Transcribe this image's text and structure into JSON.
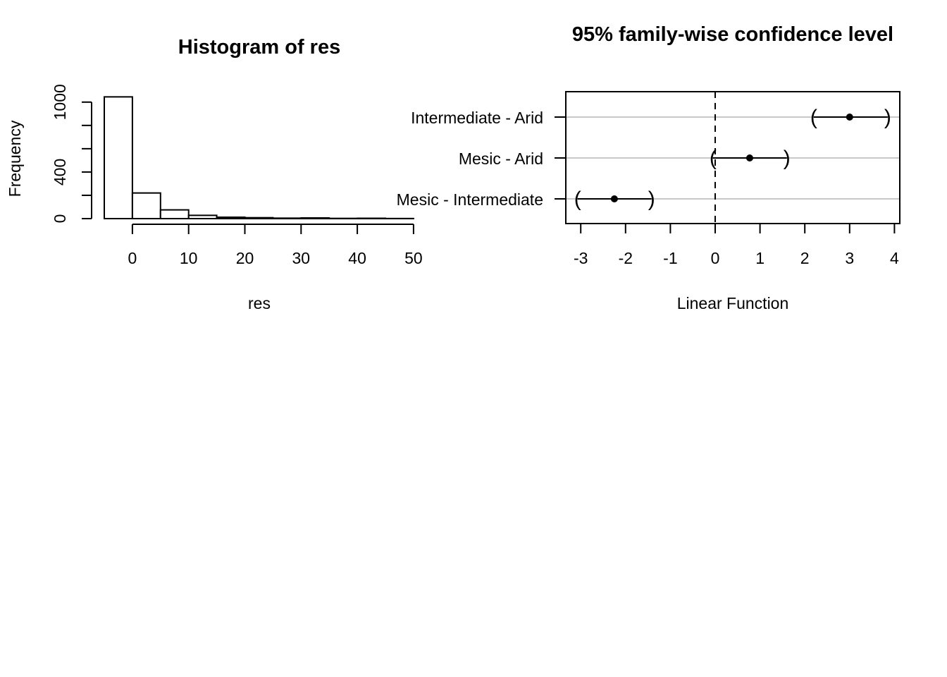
{
  "chart_data": [
    {
      "type": "bar",
      "subtype": "histogram",
      "title": "Histogram of res",
      "xlabel": "res",
      "ylabel": "Frequency",
      "xlim": [
        -5,
        50
      ],
      "ylim": [
        0,
        1000
      ],
      "x_ticks": [
        0,
        10,
        20,
        30,
        40,
        50
      ],
      "y_ticks": [
        0,
        400,
        1000
      ],
      "y_minor_ticks": [
        200,
        600,
        800
      ],
      "bin_width": 5,
      "bins": [
        {
          "from": -5,
          "to": 0,
          "count": 1045
        },
        {
          "from": 0,
          "to": 5,
          "count": 220
        },
        {
          "from": 5,
          "to": 10,
          "count": 75
        },
        {
          "from": 10,
          "to": 15,
          "count": 28
        },
        {
          "from": 15,
          "to": 20,
          "count": 12
        },
        {
          "from": 20,
          "to": 25,
          "count": 8
        },
        {
          "from": 25,
          "to": 30,
          "count": 4
        },
        {
          "from": 30,
          "to": 35,
          "count": 6
        },
        {
          "from": 35,
          "to": 40,
          "count": 2
        },
        {
          "from": 40,
          "to": 45,
          "count": 3
        },
        {
          "from": 45,
          "to": 50,
          "count": 1
        }
      ],
      "grid": false
    },
    {
      "type": "scatter",
      "subtype": "confidence-interval",
      "title": "95% family-wise confidence level",
      "xlabel": "Linear Function",
      "ylabel": "",
      "xlim": [
        -3.3,
        4.15
      ],
      "x_ticks": [
        -3,
        -2,
        -1,
        0,
        1,
        2,
        3,
        4
      ],
      "reference_line": 0,
      "grid": "horizontal",
      "comparisons": [
        {
          "label": "Intermediate - Arid",
          "estimate": 3.0,
          "lower": 2.2,
          "upper": 3.85
        },
        {
          "label": "Mesic - Arid",
          "estimate": 0.77,
          "lower": -0.05,
          "upper": 1.6
        },
        {
          "label": "Mesic - Intermediate",
          "estimate": -2.25,
          "lower": -3.07,
          "upper": -1.42
        }
      ]
    }
  ]
}
